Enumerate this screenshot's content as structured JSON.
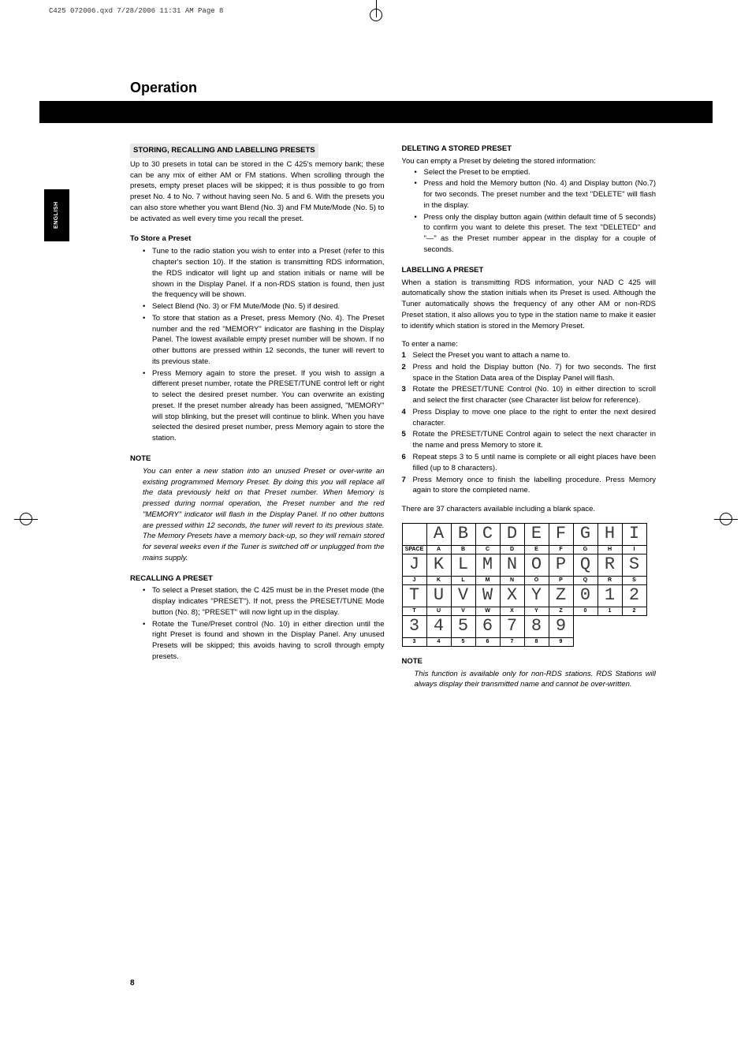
{
  "print_header": "C425 072006.qxd  7/28/2006  11:31 AM  Page 8",
  "lang_tab": "ENGLISH",
  "section": "Operation",
  "page_number": "8",
  "left": {
    "h1": "STORING, RECALLING AND LABELLING PRESETS",
    "p1": "Up to 30 presets in total can be stored in the C 425's memory bank; these can be any mix of either AM or FM stations. When scrolling through the presets, empty preset places will be skipped; it is thus possible to go from preset No. 4 to No. 7 without having seen No. 5 and 6. With the presets you can also store whether you want Blend (No. 3) and FM Mute/Mode (No. 5) to be activated as well every time you recall the preset.",
    "h2": "To Store a Preset",
    "b1": "Tune to the radio station you wish to enter into a Preset (refer to this chapter's section 10). If the station is transmitting RDS information, the RDS indicator will light up and station initials or name will be shown in the Display Panel. If a non-RDS station is found, then just the frequency will be shown.",
    "b2": "Select Blend (No. 3) or FM Mute/Mode (No. 5) if desired.",
    "b3": "To store that station as a Preset, press Memory (No. 4). The Preset number and the red \"MEMORY\" indicator are flashing in the Display Panel. The lowest available empty preset number will be shown. If no other buttons are pressed within 12 seconds, the tuner will revert to its previous state.",
    "b4": "Press Memory again to store the preset. If you wish to assign a different preset number, rotate the PRESET/TUNE control left or right to select the desired preset number. You can overwrite an existing preset. If the preset number already has been assigned, \"MEMORY\" will stop blinking, but the preset will continue to blink. When you have selected the desired preset number, press Memory again to store the station.",
    "h3": "NOTE",
    "note1": "You can enter a new station into an unused Preset or over-write an existing programmed Memory Preset. By doing this you will replace all the data previously held on that Preset number. When Memory is pressed during normal operation, the Preset number and the red \"MEMORY\" indicator will flash in the Display Panel. If no other buttons are pressed within 12 seconds, the tuner will revert to its previous state. The Memory Presets have a memory back-up, so they will remain stored for several weeks even if the Tuner is switched off or unplugged from the mains supply.",
    "h4": "RECALLING A PRESET",
    "r1": "To select a Preset station, the C 425 must be in the Preset mode (the display indicates \"PRESET\"). If not, press the PRESET/TUNE Mode button (No. 8); \"PRESET\" will now light up in the display.",
    "r2": "Rotate the Tune/Preset control (No. 10) in either direction until the right Preset is found and shown in the Display Panel. Any unused Presets will be skipped; this avoids having to scroll through empty presets."
  },
  "right": {
    "h1": "DELETING A STORED PRESET",
    "p1": "You can empty a Preset by deleting the stored information:",
    "d1": "Select the Preset to be emptied.",
    "d2": "Press and hold the Memory button (No. 4) and Display button (No.7) for two seconds. The preset number and the text \"DELETE\" will flash in the display.",
    "d3": "Press only the display button again (within default time of 5 seconds) to confirm you want to delete this preset. The text \"DELETED\" and \"—\" as the Preset number appear in the display for a couple of seconds.",
    "h2": "LABELLING A PRESET",
    "p2": "When a station is transmitting RDS information, your NAD C 425 will automatically show the station initials when its Preset is used. Although the Tuner automatically shows the frequency of any other AM or non-RDS Preset station, it also allows you to type in the station name to make it easier to identify which station is stored in the Memory Preset.",
    "p3": "To enter a name:",
    "s1": "Select the Preset you want to attach a name to.",
    "s2": "Press and hold the Display button (No. 7) for two seconds. The first space in the Station Data area of the Display Panel will flash.",
    "s3": "Rotate the PRESET/TUNE Control (No. 10) in either direction to scroll and select the first character (see Character list below for reference).",
    "s4": "Press Display to move one place to the right to enter the next desired character.",
    "s5": "Rotate the PRESET/TUNE Control again to select the next character in the name and press Memory to store it.",
    "s6": "Repeat steps 3 to 5 until name is complete or all eight places have been filled (up to 8 characters).",
    "s7": "Press Memory once to finish the labelling procedure. Press Memory again to store the completed name.",
    "p4": "There are 37 characters available including a blank space.",
    "h3": "NOTE",
    "note2": "This function is available only for non-RDS stations. RDS Stations will always display their transmitted name and cannot be over-written."
  },
  "char_rows": [
    {
      "seg": [
        " ",
        "A",
        "B",
        "C",
        "D",
        "E",
        "F",
        "G",
        "H",
        "I"
      ],
      "lbl": [
        "SPACE",
        "A",
        "B",
        "C",
        "D",
        "E",
        "F",
        "G",
        "H",
        "I"
      ]
    },
    {
      "seg": [
        "J",
        "K",
        "L",
        "M",
        "N",
        "O",
        "P",
        "Q",
        "R",
        "S"
      ],
      "lbl": [
        "J",
        "K",
        "L",
        "M",
        "N",
        "O",
        "P",
        "Q",
        "R",
        "S"
      ]
    },
    {
      "seg": [
        "T",
        "U",
        "V",
        "W",
        "X",
        "Y",
        "Z",
        "0",
        "1",
        "2"
      ],
      "lbl": [
        "T",
        "U",
        "V",
        "W",
        "X",
        "Y",
        "Z",
        "0",
        "1",
        "2"
      ]
    },
    {
      "seg": [
        "3",
        "4",
        "5",
        "6",
        "7",
        "8",
        "9"
      ],
      "lbl": [
        "3",
        "4",
        "5",
        "6",
        "7",
        "8",
        "9"
      ]
    }
  ]
}
